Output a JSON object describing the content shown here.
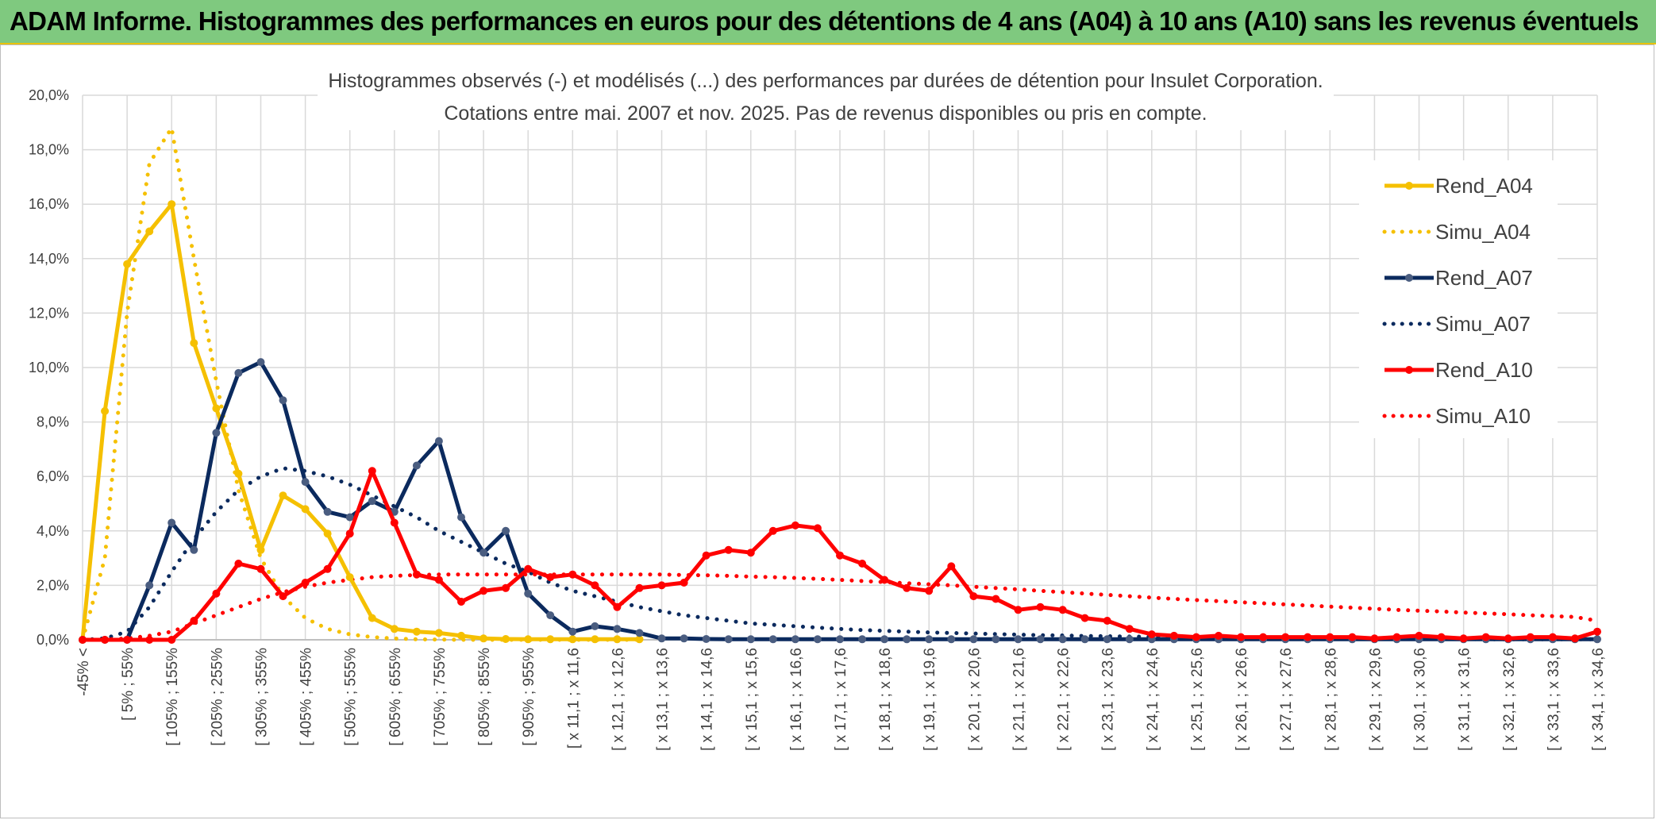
{
  "header": {
    "title": "ADAM Informe. Histogrammes des performances en euros pour des détentions de 4 ans (A04) à 10 ans (A10) sans les revenus éventuels"
  },
  "chart_data": {
    "type": "line",
    "title": "Histogrammes observés (-) et modélisés (...) des performances par durées de détention pour Insulet Corporation.",
    "subtitle": "Cotations entre mai. 2007 et nov. 2025. Pas de revenus disponibles ou pris en compte.",
    "ylim": [
      0,
      20
    ],
    "yticks": [
      "0,0%",
      "2,0%",
      "4,0%",
      "6,0%",
      "8,0%",
      "10,0%",
      "12,0%",
      "14,0%",
      "16,0%",
      "18,0%",
      "20,0%"
    ],
    "x_tick_labels": [
      "-45% <",
      "[ 5% ; 55%",
      "[ 105% ; 155%",
      "[ 205% ; 255%",
      "[ 305% ; 355%",
      "[ 405% ; 455%",
      "[ 505% ; 555%",
      "[ 605% ; 655%",
      "[ 705% ; 755%",
      "[ 805% ; 855%",
      "[ 905% ; 955%",
      "[ x 11,1 ; x 11,6",
      "[ x 12,1 ; x 12,6",
      "[ x 13,1 ; x 13,6",
      "[ x 14,1 ; x 14,6",
      "[ x 15,1 ; x 15,6",
      "[ x 16,1 ; x 16,6",
      "[ x 17,1 ; x 17,6",
      "[ x 18,1 ; x 18,6",
      "[ x 19,1 ; x 19,6",
      "[ x 20,1 ; x 20,6",
      "[ x 21,1 ; x 21,6",
      "[ x 22,1 ; x 22,6",
      "[ x 23,1 ; x 23,6",
      "[ x 24,1 ; x 24,6",
      "[ x 25,1 ; x 25,6",
      "[ x 26,1 ; x 26,6",
      "[ x 27,1 ; x 27,6",
      "[ x 28,1 ; x 28,6",
      "[ x 29,1 ; x 29,6",
      "[ x 30,1 ; x 30,6",
      "[ x 31,1 ; x 31,6",
      "[ x 32,1 ; x 32,6",
      "[ x 33,1 ; x 33,6",
      "[ x 34,1 ; x 34,6"
    ],
    "n_categories": 69,
    "series": [
      {
        "name": "Rend_A04",
        "style": "solid-markers",
        "color": "#f5c000",
        "values": [
          0,
          8.4,
          13.8,
          15.0,
          16.0,
          10.9,
          8.5,
          6.1,
          3.3,
          5.3,
          4.8,
          3.9,
          2.3,
          0.8,
          0.4,
          0.3,
          0.25,
          0.15,
          0.05,
          0.03,
          0.02,
          0.02,
          0.02,
          0.02,
          0.02,
          0.02
        ]
      },
      {
        "name": "Simu_A04",
        "style": "dotted",
        "color": "#f5c000",
        "values": [
          0,
          3.0,
          12.0,
          17.5,
          18.8,
          14.0,
          9.5,
          5.5,
          3.0,
          1.6,
          0.8,
          0.4,
          0.2,
          0.1,
          0.05,
          0.02,
          0.01,
          0,
          0,
          0,
          0,
          0,
          0,
          0,
          0,
          0
        ]
      },
      {
        "name": "Rend_A07",
        "style": "solid-markers",
        "color": "#0b2a5e",
        "values": [
          0,
          0,
          0,
          2.0,
          4.3,
          3.3,
          7.6,
          9.8,
          10.2,
          8.8,
          5.8,
          4.7,
          4.5,
          5.1,
          4.7,
          6.4,
          7.3,
          4.5,
          3.2,
          4.0,
          1.7,
          0.9,
          0.3,
          0.5,
          0.4,
          0.25,
          0.05,
          0.05,
          0.03,
          0.02,
          0.02,
          0.02,
          0.02,
          0.02,
          0.02,
          0.02,
          0.02,
          0.02,
          0.02,
          0.02,
          0.02,
          0.02,
          0.02,
          0.02,
          0.02,
          0.02,
          0.02,
          0.02,
          0.02,
          0.02,
          0.02,
          0.02,
          0.02,
          0.02,
          0.02,
          0.02,
          0.02,
          0.02,
          0.02,
          0.02,
          0.02,
          0.02,
          0.02,
          0.02,
          0.02,
          0.02,
          0.02,
          0.02,
          0.02
        ]
      },
      {
        "name": "Simu_A07",
        "style": "dotted",
        "color": "#0b2a5e",
        "values": [
          0,
          0.05,
          0.3,
          1.2,
          2.5,
          3.7,
          4.7,
          5.5,
          6.0,
          6.3,
          6.2,
          6.0,
          5.7,
          5.3,
          4.9,
          4.5,
          4.0,
          3.6,
          3.2,
          2.8,
          2.5,
          2.1,
          1.8,
          1.6,
          1.4,
          1.2,
          1.05,
          0.9,
          0.8,
          0.7,
          0.6,
          0.55,
          0.5,
          0.45,
          0.4,
          0.36,
          0.33,
          0.3,
          0.27,
          0.25,
          0.23,
          0.21,
          0.19,
          0.17,
          0.16,
          0.14,
          0.13,
          0.12,
          0.11,
          0.1,
          0.09,
          0.08,
          0.07,
          0.07,
          0.06,
          0.05,
          0.05,
          0.04,
          0.04,
          0.03,
          0.03,
          0.03,
          0.03,
          0.02,
          0.02,
          0.02,
          0.02,
          0.02,
          0.02
        ]
      },
      {
        "name": "Rend_A10",
        "style": "solid-markers",
        "color": "#ff0000",
        "values": [
          0,
          0,
          0,
          0,
          0,
          0.7,
          1.7,
          2.8,
          2.6,
          1.6,
          2.1,
          2.6,
          3.9,
          6.2,
          4.3,
          2.4,
          2.2,
          1.4,
          1.8,
          1.9,
          2.6,
          2.3,
          2.4,
          2.0,
          1.2,
          1.9,
          2.0,
          2.1,
          3.1,
          3.3,
          3.2,
          4.0,
          4.2,
          4.1,
          3.1,
          2.8,
          2.2,
          1.9,
          1.8,
          2.7,
          1.6,
          1.5,
          1.1,
          1.2,
          1.1,
          0.8,
          0.7,
          0.4,
          0.2,
          0.15,
          0.1,
          0.15,
          0.1,
          0.1,
          0.1,
          0.1,
          0.1,
          0.1,
          0.05,
          0.1,
          0.15,
          0.1,
          0.05,
          0.1,
          0.05,
          0.1,
          0.1,
          0.05,
          0.3
        ]
      },
      {
        "name": "Simu_A10",
        "style": "dotted",
        "color": "#ff0000",
        "values": [
          0,
          0.01,
          0.05,
          0.15,
          0.3,
          0.6,
          0.9,
          1.2,
          1.5,
          1.75,
          1.95,
          2.1,
          2.2,
          2.3,
          2.35,
          2.38,
          2.4,
          2.4,
          2.4,
          2.4,
          2.4,
          2.4,
          2.4,
          2.4,
          2.4,
          2.4,
          2.4,
          2.38,
          2.37,
          2.35,
          2.32,
          2.3,
          2.27,
          2.24,
          2.2,
          2.16,
          2.12,
          2.08,
          2.04,
          2.0,
          1.95,
          1.9,
          1.85,
          1.8,
          1.75,
          1.7,
          1.65,
          1.6,
          1.55,
          1.5,
          1.46,
          1.42,
          1.38,
          1.34,
          1.3,
          1.26,
          1.22,
          1.18,
          1.14,
          1.1,
          1.07,
          1.04,
          1.0,
          0.97,
          0.94,
          0.9,
          0.87,
          0.84,
          0.7
        ]
      }
    ],
    "legend": [
      "Rend_A04",
      "Simu_A04",
      "Rend_A07",
      "Simu_A07",
      "Rend_A10",
      "Simu_A10"
    ]
  }
}
